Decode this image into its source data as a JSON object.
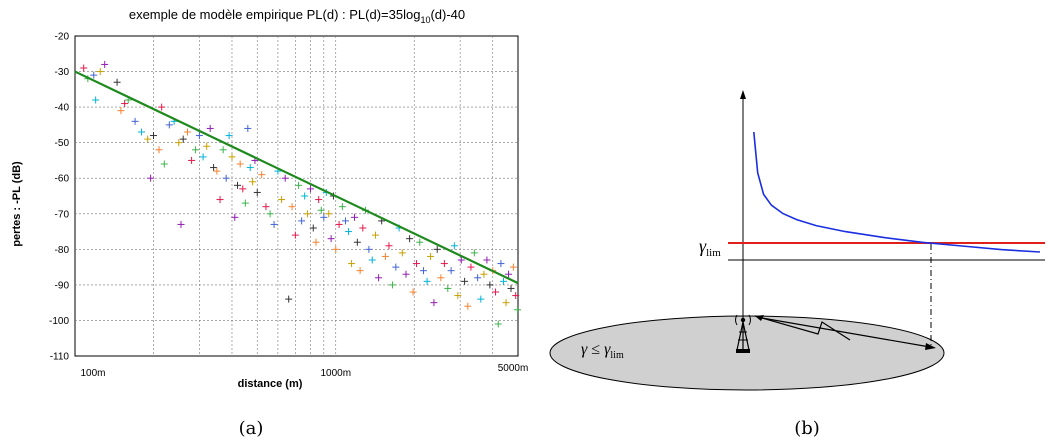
{
  "chart_data": [
    {
      "type": "scatter",
      "title": "exemple de modèle empirique PL(d) : PL(d)=35log10(d)-40",
      "title_parts": [
        "exemple de modèle empirique PL(d) : PL(d)=35log",
        "10",
        "(d)-40"
      ],
      "xlabel": "distance (m)",
      "ylabel": "pertes : -PL (dB)",
      "x_scale": "log",
      "xlim": [
        100,
        5000
      ],
      "ylim": [
        -110,
        -20
      ],
      "x_tick_labels": [
        "100m",
        "1000m",
        "5000m"
      ],
      "y_ticks": [
        -20,
        -30,
        -40,
        -50,
        -60,
        -70,
        -80,
        -90,
        -100,
        -110
      ],
      "grid": true,
      "model_line": {
        "x": [
          100,
          5000
        ],
        "y": [
          -30,
          -89.5
        ],
        "color": "#1e8a1e"
      },
      "marker_colors": [
        "#e6194b",
        "#3cb44b",
        "#4363d8",
        "#00b4d8",
        "#c8a000",
        "#911eb4",
        "#333333",
        "#f58231"
      ],
      "series": [
        {
          "x": [
            108,
            112,
            118,
            120,
            125,
            130,
            145,
            150,
            155,
            160,
            170,
            180,
            190,
            195,
            200,
            210,
            215,
            220,
            230,
            240,
            250,
            255,
            260,
            270,
            280,
            290,
            300,
            310,
            320,
            330,
            340,
            350,
            360,
            370,
            380,
            390,
            400,
            410,
            420,
            430,
            440,
            450,
            460,
            470,
            480,
            490,
            500,
            520,
            540,
            560,
            580,
            600,
            620,
            640,
            660,
            680,
            700,
            720,
            740,
            760,
            780,
            800,
            820,
            840,
            860,
            880,
            900,
            920,
            940,
            960,
            980,
            1000,
            1030,
            1060,
            1090,
            1120,
            1150,
            1180,
            1210,
            1240,
            1270,
            1300,
            1340,
            1380,
            1420,
            1460,
            1500,
            1550,
            1600,
            1650,
            1700,
            1750,
            1800,
            1860,
            1920,
            1980,
            2040,
            2100,
            2170,
            2240,
            2310,
            2380,
            2450,
            2530,
            2610,
            2690,
            2770,
            2850,
            2940,
            3030,
            3120,
            3210,
            3300,
            3400,
            3500,
            3600,
            3700,
            3800,
            3900,
            4000,
            4100,
            4200,
            4300,
            4400,
            4500,
            4600,
            4700,
            4800,
            4900,
            4980
          ],
          "y": [
            -29,
            -32,
            -31,
            -38,
            -30,
            -28,
            -33,
            -41,
            -39,
            -38,
            -44,
            -47,
            -49,
            -60,
            -48,
            -52,
            -40,
            -56,
            -45,
            -44,
            -50,
            -73,
            -49,
            -47,
            -55,
            -52,
            -48,
            -54,
            -51,
            -46,
            -57,
            -58,
            -66,
            -52,
            -60,
            -48,
            -54,
            -71,
            -62,
            -56,
            -63,
            -67,
            -46,
            -57,
            -61,
            -55,
            -64,
            -59,
            -68,
            -70,
            -73,
            -58,
            -66,
            -60,
            -94,
            -68,
            -76,
            -62,
            -72,
            -65,
            -70,
            -63,
            -74,
            -78,
            -66,
            -69,
            -71,
            -64,
            -70,
            -77,
            -65,
            -80,
            -73,
            -68,
            -72,
            -75,
            -84,
            -71,
            -78,
            -86,
            -74,
            -69,
            -80,
            -83,
            -76,
            -88,
            -72,
            -82,
            -79,
            -90,
            -85,
            -74,
            -81,
            -87,
            -77,
            -92,
            -84,
            -78,
            -86,
            -89,
            -82,
            -95,
            -80,
            -88,
            -84,
            -91,
            -86,
            -79,
            -93,
            -83,
            -89,
            -96,
            -85,
            -81,
            -88,
            -94,
            -87,
            -83,
            -90,
            -86,
            -92,
            -101,
            -84,
            -89,
            -95,
            -87,
            -91,
            -85,
            -93,
            -97
          ]
        }
      ]
    },
    {
      "type": "line",
      "title": "",
      "symbol_gamma_lim": "γ",
      "symbol_gamma_lim_sub": "lim",
      "region_label": "γ ≤ γ",
      "region_label_sub": "lim",
      "curve_x": [
        0.03,
        0.05,
        0.08,
        0.12,
        0.18,
        0.25,
        0.35,
        0.5,
        0.7,
        0.9,
        1.1,
        1.3,
        1.5
      ],
      "curve_y": [
        1.0,
        0.66,
        0.48,
        0.39,
        0.32,
        0.27,
        0.22,
        0.17,
        0.12,
        0.08,
        0.05,
        0.02,
        0.0
      ],
      "threshold_y": 0.06,
      "threshold_color": "#e0201a",
      "curve_color": "#1a2fe0"
    }
  ],
  "captions": [
    "(a)",
    "(b)"
  ]
}
